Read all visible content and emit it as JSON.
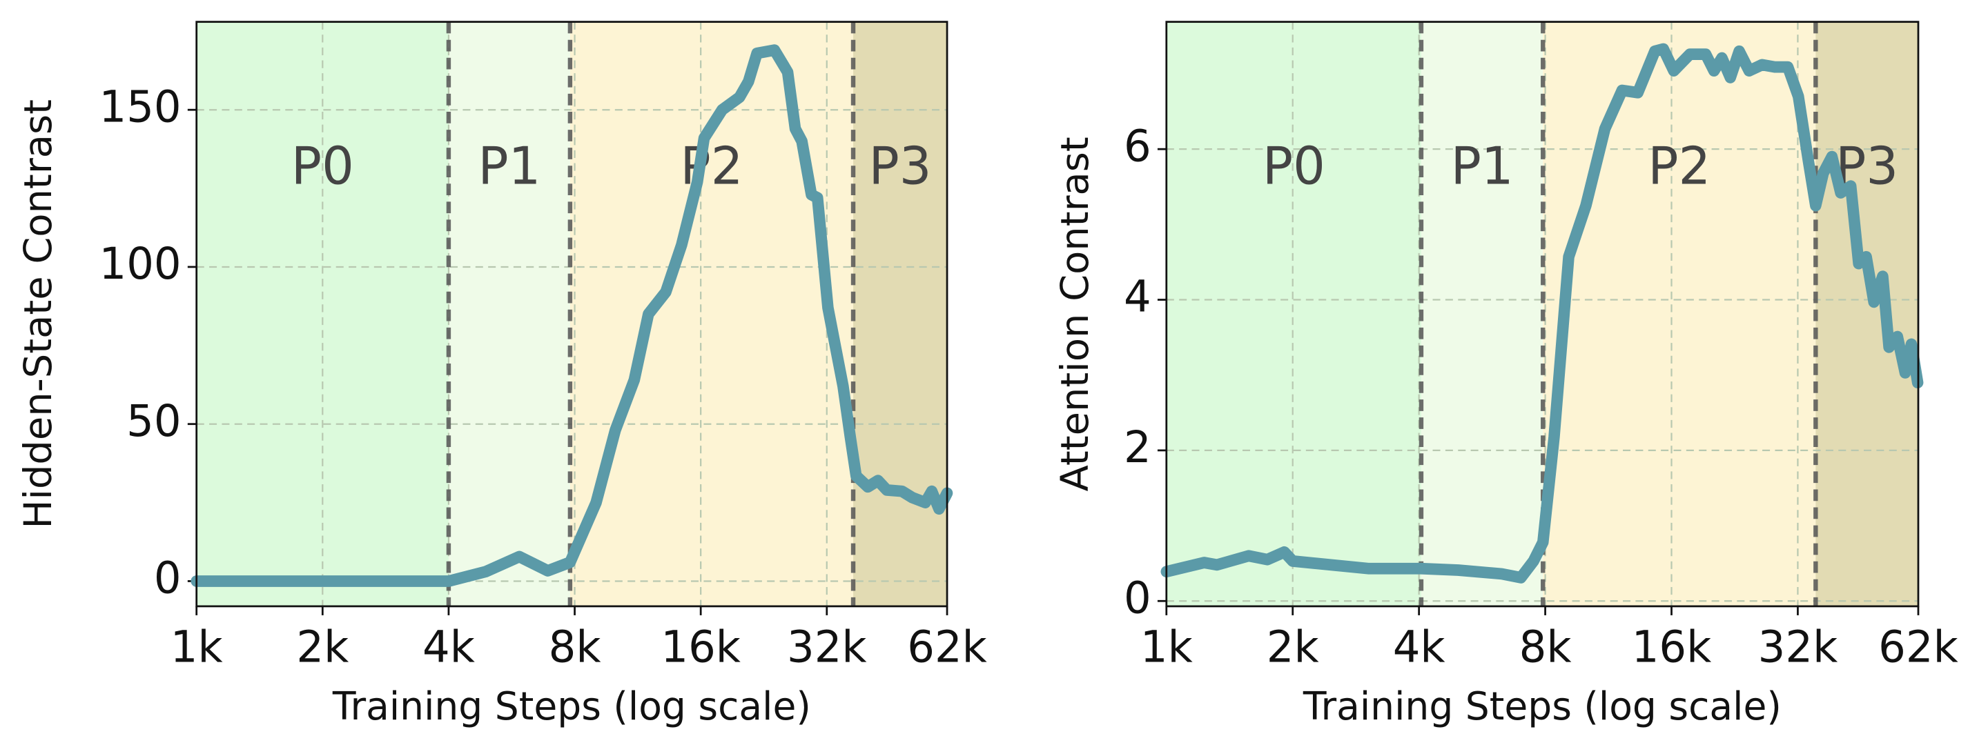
{
  "chart_data": [
    {
      "type": "line",
      "xlabel": "Training Steps (log scale)",
      "ylabel": "Hidden-State Contrast",
      "xscale": "log",
      "grid": true,
      "color": "#5b9aa8",
      "xlim": [
        1000,
        62000
      ],
      "ylim": [
        -8,
        178
      ],
      "xticks": [
        {
          "value": 1000,
          "label": "1k"
        },
        {
          "value": 2000,
          "label": "2k"
        },
        {
          "value": 4000,
          "label": "4k"
        },
        {
          "value": 8000,
          "label": "8k"
        },
        {
          "value": 16000,
          "label": "16k"
        },
        {
          "value": 32000,
          "label": "32k"
        },
        {
          "value": 62000,
          "label": "62k"
        }
      ],
      "yticks": [
        0,
        50,
        100,
        150
      ],
      "phases": [
        {
          "label": "P0",
          "start": 1000,
          "end": 4000,
          "color": "#dcfadc"
        },
        {
          "label": "P1",
          "start": 4000,
          "end": 7800,
          "color": "#effbe8"
        },
        {
          "label": "P2",
          "start": 7800,
          "end": 37000,
          "color": "#fdf4d4"
        },
        {
          "label": "P3",
          "start": 37000,
          "end": 62000,
          "color": "#e2dbb3"
        }
      ],
      "x": [
        1000,
        1500,
        2000,
        3000,
        4000,
        4900,
        5900,
        6900,
        7800,
        9000,
        10000,
        11100,
        12000,
        13200,
        14400,
        15700,
        16300,
        18000,
        19800,
        20800,
        21800,
        24000,
        25800,
        26900,
        27900,
        29400,
        30400,
        32200,
        35000,
        36400,
        37600,
        40100,
        42400,
        44500,
        48400,
        51200,
        55000,
        57000,
        59300,
        62000
      ],
      "values": [
        0,
        0,
        0,
        0,
        0,
        3,
        7.8,
        3.3,
        6,
        25,
        48,
        64,
        85,
        92,
        107,
        127,
        141,
        150,
        154,
        159,
        168,
        169,
        162,
        144,
        140,
        123,
        122,
        87,
        62,
        46,
        33.5,
        30,
        32,
        29,
        28.6,
        26.6,
        25,
        28.6,
        23,
        28
      ]
    },
    {
      "type": "line",
      "xlabel": "Training Steps (log scale)",
      "ylabel": "Attention Contrast",
      "xscale": "log",
      "grid": true,
      "color": "#5b9aa8",
      "xlim": [
        1000,
        62000
      ],
      "ylim": [
        -0.07,
        7.69
      ],
      "xticks": [
        {
          "value": 1000,
          "label": "1k"
        },
        {
          "value": 2000,
          "label": "2k"
        },
        {
          "value": 4000,
          "label": "4k"
        },
        {
          "value": 8000,
          "label": "8k"
        },
        {
          "value": 16000,
          "label": "16k"
        },
        {
          "value": 32000,
          "label": "32k"
        },
        {
          "value": 62000,
          "label": "62k"
        }
      ],
      "yticks": [
        0,
        2,
        4,
        6
      ],
      "phases": [
        {
          "label": "P0",
          "start": 1000,
          "end": 4050,
          "color": "#dcfadc"
        },
        {
          "label": "P1",
          "start": 4050,
          "end": 7900,
          "color": "#effbe8"
        },
        {
          "label": "P2",
          "start": 7900,
          "end": 35300,
          "color": "#fdf4d4"
        },
        {
          "label": "P3",
          "start": 35300,
          "end": 62000,
          "color": "#e2dbb3"
        }
      ],
      "x": [
        1000,
        1230,
        1320,
        1570,
        1740,
        1910,
        2000,
        3040,
        4050,
        4960,
        6300,
        7000,
        7500,
        7900,
        8400,
        9100,
        10000,
        11100,
        12200,
        13300,
        14600,
        15300,
        16200,
        17700,
        19300,
        20200,
        21100,
        22100,
        23200,
        24500,
        26300,
        28200,
        30300,
        32100,
        33900,
        35300,
        36800,
        38600,
        40500,
        42800,
        44700,
        46600,
        48600,
        51000,
        52800,
        55300,
        57700,
        59700,
        61800
      ],
      "values": [
        0.39,
        0.51,
        0.48,
        0.6,
        0.55,
        0.65,
        0.53,
        0.43,
        0.43,
        0.41,
        0.36,
        0.31,
        0.53,
        0.78,
        2.18,
        4.57,
        5.25,
        6.27,
        6.78,
        6.75,
        7.3,
        7.33,
        7.04,
        7.26,
        7.26,
        7.04,
        7.21,
        6.95,
        7.3,
        7.04,
        7.12,
        7.09,
        7.09,
        6.7,
        5.85,
        5.25,
        5.68,
        5.9,
        5.42,
        5.51,
        4.48,
        4.57,
        3.97,
        4.31,
        3.37,
        3.51,
        3.03,
        3.41,
        2.9
      ]
    }
  ]
}
